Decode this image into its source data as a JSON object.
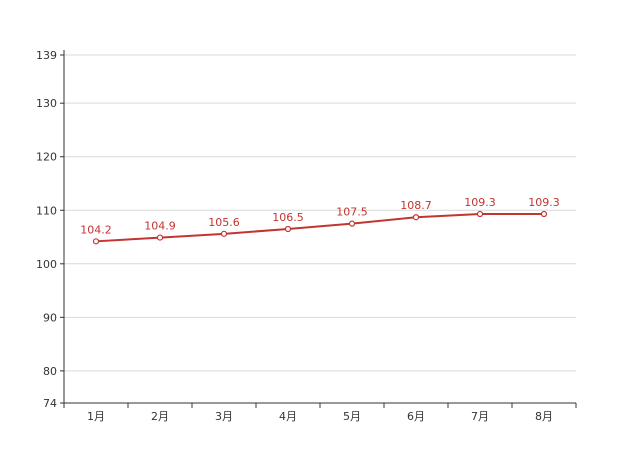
{
  "chart_data": {
    "type": "line",
    "categories": [
      "1月",
      "2月",
      "3月",
      "4月",
      "5月",
      "6月",
      "7月",
      "8月"
    ],
    "series": [
      {
        "values": [
          104.2,
          104.9,
          105.6,
          106.5,
          107.5,
          108.7,
          109.3,
          109.3
        ]
      }
    ],
    "yticks": [
      74,
      80,
      90,
      100,
      110,
      120,
      130,
      139
    ],
    "ylim": [
      74,
      139
    ],
    "grid": true,
    "colors": {
      "line": "#c23531",
      "axis": "#333333",
      "grid": "#d9d9d9"
    }
  }
}
